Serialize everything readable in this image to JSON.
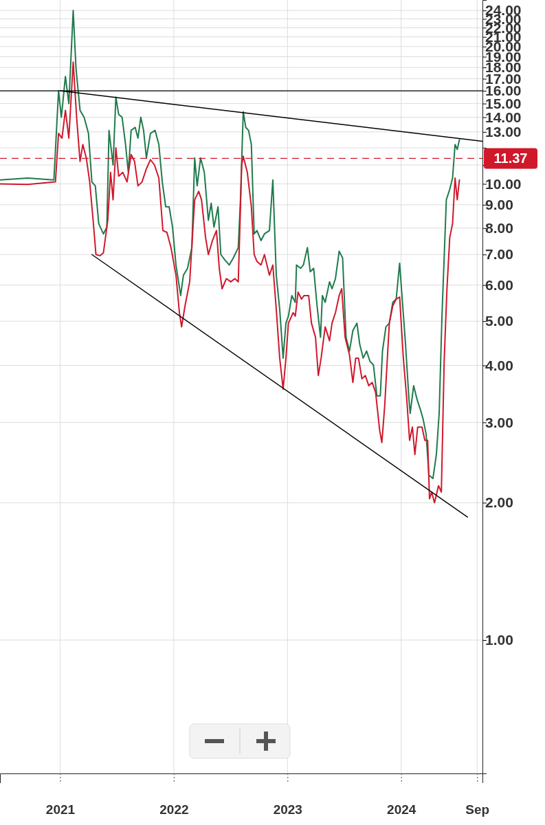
{
  "chart_data": {
    "type": "line",
    "log": true,
    "grid": true,
    "marker": "none",
    "line_style": "solid",
    "xlim": [
      "2020-06-22",
      "2024-09-18"
    ],
    "xticks": [
      {
        "value": "2021-01-01",
        "label": "2021"
      },
      {
        "value": "2022-01-01",
        "label": "2022"
      },
      {
        "value": "2023-01-01",
        "label": "2023"
      },
      {
        "value": "2024-01-01",
        "label": "2024"
      },
      {
        "value": "2024-09-01",
        "label": "Sep"
      }
    ],
    "ylim": [
      0.51,
      25.3
    ],
    "yticks": [
      {
        "value": 1,
        "label": "1.00"
      },
      {
        "value": 2,
        "label": "2.00"
      },
      {
        "value": 3,
        "label": "3.00"
      },
      {
        "value": 4,
        "label": "4.00"
      },
      {
        "value": 5,
        "label": "5.00"
      },
      {
        "value": 6,
        "label": "6.00"
      },
      {
        "value": 7,
        "label": "7.00"
      },
      {
        "value": 8,
        "label": "8.00"
      },
      {
        "value": 9,
        "label": "9.00"
      },
      {
        "value": 10,
        "label": "10.00"
      },
      {
        "value": 11,
        "label": null
      },
      {
        "value": 12,
        "label": null
      },
      {
        "value": 13,
        "label": "13.00"
      },
      {
        "value": 14,
        "label": "14.00"
      },
      {
        "value": 15,
        "label": "15.00"
      },
      {
        "value": 16,
        "label": "16.00"
      },
      {
        "value": 17,
        "label": "17.00"
      },
      {
        "value": 18,
        "label": "18.00"
      },
      {
        "value": 19,
        "label": "19.00"
      },
      {
        "value": 20,
        "label": "20.00"
      },
      {
        "value": 21,
        "label": "21.00"
      },
      {
        "value": 22,
        "label": "22.00"
      },
      {
        "value": 23,
        "label": "23.00"
      },
      {
        "value": 24,
        "label": "24.00"
      }
    ],
    "ref_lines": [
      {
        "axis": "y",
        "value": 11.37,
        "label": "11.37",
        "color": "#d0182b",
        "line_style": "dashed"
      },
      {
        "axis": "y",
        "value": 16,
        "color": "#000000",
        "line_style": "solid"
      }
    ],
    "series": [
      {
        "color": "#1f7a4c",
        "x": [
          "2020-06-22",
          "2020-09-19",
          "2020-12-12",
          "2020-12-27",
          "2021-01-05",
          "2021-01-18",
          "2021-01-29",
          "2021-02-12",
          "2021-02-21",
          "2021-03-06",
          "2021-03-19",
          "2021-04-02",
          "2021-04-13",
          "2021-04-24",
          "2021-05-05",
          "2021-05-20",
          "2021-05-31",
          "2021-06-07",
          "2021-06-20",
          "2021-06-29",
          "2021-07-08",
          "2021-07-19",
          "2021-07-30",
          "2021-08-08",
          "2021-08-17",
          "2021-08-30",
          "2021-09-08",
          "2021-09-17",
          "2021-09-26",
          "2021-10-05",
          "2021-10-18",
          "2021-11-02",
          "2021-11-14",
          "2021-11-25",
          "2021-12-06",
          "2021-12-17",
          "2021-12-28",
          "2022-01-08",
          "2022-01-23",
          "2022-02-01",
          "2022-02-14",
          "2022-02-28",
          "2022-03-09",
          "2022-03-17",
          "2022-03-28",
          "2022-04-09",
          "2022-04-22",
          "2022-05-01",
          "2022-05-10",
          "2022-05-23",
          "2022-06-01",
          "2022-06-14",
          "2022-06-28",
          "2022-07-11",
          "2022-07-27",
          "2022-08-03",
          "2022-08-12",
          "2022-08-20",
          "2022-08-29",
          "2022-09-07",
          "2022-09-16",
          "2022-09-25",
          "2022-10-08",
          "2022-10-19",
          "2022-11-04",
          "2022-11-15",
          "2022-11-26",
          "2022-12-07",
          "2022-12-18",
          "2022-12-27",
          "2023-01-04",
          "2023-01-15",
          "2023-01-26",
          "2023-01-30",
          "2023-02-12",
          "2023-02-21",
          "2023-03-06",
          "2023-03-15",
          "2023-03-26",
          "2023-04-06",
          "2023-04-17",
          "2023-04-23",
          "2023-05-02",
          "2023-05-16",
          "2023-05-24",
          "2023-06-04",
          "2023-06-16",
          "2023-06-27",
          "2023-07-08",
          "2023-07-19",
          "2023-07-30",
          "2023-08-12",
          "2023-08-21",
          "2023-09-01",
          "2023-09-12",
          "2023-09-23",
          "2023-10-04",
          "2023-10-15",
          "2023-10-26",
          "2023-11-02",
          "2023-11-13",
          "2023-11-24",
          "2023-12-05",
          "2023-12-16",
          "2023-12-27",
          "2024-01-15",
          "2024-01-26",
          "2024-01-30",
          "2024-02-10",
          "2024-02-21",
          "2024-03-04",
          "2024-03-12",
          "2024-03-21",
          "2024-03-30",
          "2024-04-12",
          "2024-04-23",
          "2024-05-02",
          "2024-05-11",
          "2024-05-25",
          "2024-06-05",
          "2024-06-14",
          "2024-06-22",
          "2024-06-29",
          "2024-07-06"
        ],
        "values": [
          10.2,
          10.3,
          10.2,
          16.0,
          14.0,
          17.2,
          15.0,
          24.0,
          17.9,
          14.5,
          14.0,
          12.9,
          10.1,
          9.9,
          8.18,
          7.77,
          8.04,
          13.1,
          11.0,
          15.5,
          14.2,
          14.0,
          12.2,
          10.6,
          13.1,
          13.3,
          12.6,
          14.0,
          13.1,
          11.4,
          12.9,
          13.1,
          12.2,
          10.1,
          8.91,
          8.91,
          8.04,
          6.64,
          5.69,
          6.31,
          6.53,
          7.25,
          11.4,
          9.9,
          11.4,
          10.6,
          8.32,
          9.07,
          8.04,
          8.91,
          7.0,
          6.81,
          6.64,
          6.88,
          7.25,
          9.23,
          14.4,
          13.3,
          13.1,
          12.2,
          7.77,
          7.9,
          7.51,
          7.77,
          7.9,
          10.2,
          6.31,
          5.31,
          4.15,
          4.95,
          5.13,
          5.69,
          5.5,
          6.64,
          6.53,
          6.64,
          7.25,
          6.42,
          6.53,
          5.4,
          4.61,
          5.69,
          5.5,
          6.1,
          5.89,
          6.2,
          7.12,
          6.88,
          4.61,
          4.3,
          4.77,
          4.95,
          4.45,
          4.15,
          4.3,
          4.08,
          4.01,
          3.43,
          3.43,
          4.3,
          4.86,
          4.95,
          5.5,
          5.59,
          6.7,
          4.45,
          3.37,
          3.14,
          3.61,
          3.37,
          3.18,
          3.04,
          2.83,
          2.3,
          2.26,
          2.55,
          3.14,
          5.13,
          9.23,
          9.73,
          10.3,
          12.2,
          11.9,
          12.5
        ]
      },
      {
        "color": "#d0182b",
        "x": [
          "2020-06-22",
          "2020-09-19",
          "2020-12-17",
          "2020-12-27",
          "2021-01-07",
          "2021-01-18",
          "2021-01-29",
          "2021-02-12",
          "2021-02-23",
          "2021-03-06",
          "2021-03-15",
          "2021-03-26",
          "2021-04-06",
          "2021-04-17",
          "2021-04-26",
          "2021-05-09",
          "2021-05-20",
          "2021-06-03",
          "2021-06-12",
          "2021-06-20",
          "2021-06-29",
          "2021-07-08",
          "2021-07-21",
          "2021-08-04",
          "2021-08-17",
          "2021-08-28",
          "2021-09-08",
          "2021-09-21",
          "2021-10-05",
          "2021-10-18",
          "2021-10-31",
          "2021-11-14",
          "2021-11-27",
          "2021-12-10",
          "2021-12-23",
          "2022-01-08",
          "2022-01-19",
          "2022-01-26",
          "2022-02-06",
          "2022-02-21",
          "2022-03-09",
          "2022-03-22",
          "2022-03-31",
          "2022-04-13",
          "2022-04-22",
          "2022-05-05",
          "2022-05-18",
          "2022-05-27",
          "2022-06-05",
          "2022-06-19",
          "2022-07-03",
          "2022-07-16",
          "2022-07-27",
          "2022-08-07",
          "2022-08-12",
          "2022-08-25",
          "2022-09-07",
          "2022-09-16",
          "2022-09-25",
          "2022-10-08",
          "2022-10-19",
          "2022-11-04",
          "2022-11-15",
          "2022-11-26",
          "2022-12-07",
          "2022-12-18",
          "2022-12-27",
          "2023-01-04",
          "2023-01-19",
          "2023-01-26",
          "2023-02-04",
          "2023-02-15",
          "2023-02-23",
          "2023-03-10",
          "2023-03-19",
          "2023-04-01",
          "2023-04-10",
          "2023-04-19",
          "2023-05-02",
          "2023-05-16",
          "2023-05-24",
          "2023-06-04",
          "2023-06-16",
          "2023-06-24",
          "2023-07-05",
          "2023-07-19",
          "2023-07-30",
          "2023-08-08",
          "2023-08-17",
          "2023-08-28",
          "2023-09-08",
          "2023-09-19",
          "2023-09-30",
          "2023-10-11",
          "2023-10-24",
          "2023-10-31",
          "2023-11-09",
          "2023-11-24",
          "2023-12-05",
          "2023-12-16",
          "2023-12-27",
          "2024-01-08",
          "2024-01-19",
          "2024-01-28",
          "2024-02-06",
          "2024-02-14",
          "2024-02-23",
          "2024-03-08",
          "2024-03-17",
          "2024-03-26",
          "2024-04-01",
          "2024-04-08",
          "2024-04-17",
          "2024-04-30",
          "2024-05-09",
          "2024-05-18",
          "2024-05-27",
          "2024-06-05",
          "2024-06-14",
          "2024-06-22",
          "2024-06-29",
          "2024-07-06"
        ],
        "values": [
          10.0,
          9.97,
          10.1,
          12.9,
          12.6,
          14.5,
          12.6,
          18.5,
          14.0,
          11.2,
          12.2,
          11.4,
          10.1,
          8.32,
          7.0,
          6.96,
          7.06,
          8.32,
          10.6,
          9.23,
          12.0,
          10.4,
          10.6,
          10.1,
          11.6,
          11.2,
          9.9,
          10.1,
          10.8,
          11.3,
          11.0,
          10.3,
          7.9,
          7.83,
          7.25,
          6.31,
          5.22,
          4.86,
          5.4,
          6.1,
          9.23,
          9.63,
          9.23,
          7.63,
          7.0,
          7.51,
          7.9,
          6.53,
          5.89,
          6.2,
          6.1,
          6.2,
          6.1,
          11.0,
          11.5,
          10.6,
          8.91,
          7.0,
          6.76,
          6.64,
          7.0,
          6.31,
          6.64,
          5.31,
          4.15,
          3.55,
          4.15,
          4.95,
          5.22,
          5.13,
          5.79,
          5.59,
          5.69,
          5.69,
          4.95,
          4.61,
          3.8,
          4.15,
          4.86,
          4.53,
          4.95,
          5.22,
          5.69,
          5.89,
          4.61,
          4.22,
          3.67,
          4.15,
          4.15,
          3.74,
          3.8,
          3.61,
          3.67,
          3.49,
          2.88,
          2.71,
          3.25,
          4.95,
          5.4,
          5.59,
          5.65,
          4.15,
          3.37,
          2.74,
          2.93,
          2.55,
          2.93,
          2.93,
          2.74,
          2.74,
          2.04,
          2.11,
          2.0,
          2.18,
          2.11,
          4.08,
          5.89,
          7.63,
          8.18,
          10.3,
          9.23,
          10.2
        ]
      },
      {
        "type": "line",
        "color": "#000000",
        "x": [
          "2021-01-01",
          "2024-09-18"
        ],
        "values": [
          16.0,
          12.4
        ]
      },
      {
        "type": "line",
        "color": "#000000",
        "x": [
          "2021-04-13",
          "2024-08-01"
        ],
        "values": [
          7.0,
          1.86
        ]
      }
    ]
  }
}
